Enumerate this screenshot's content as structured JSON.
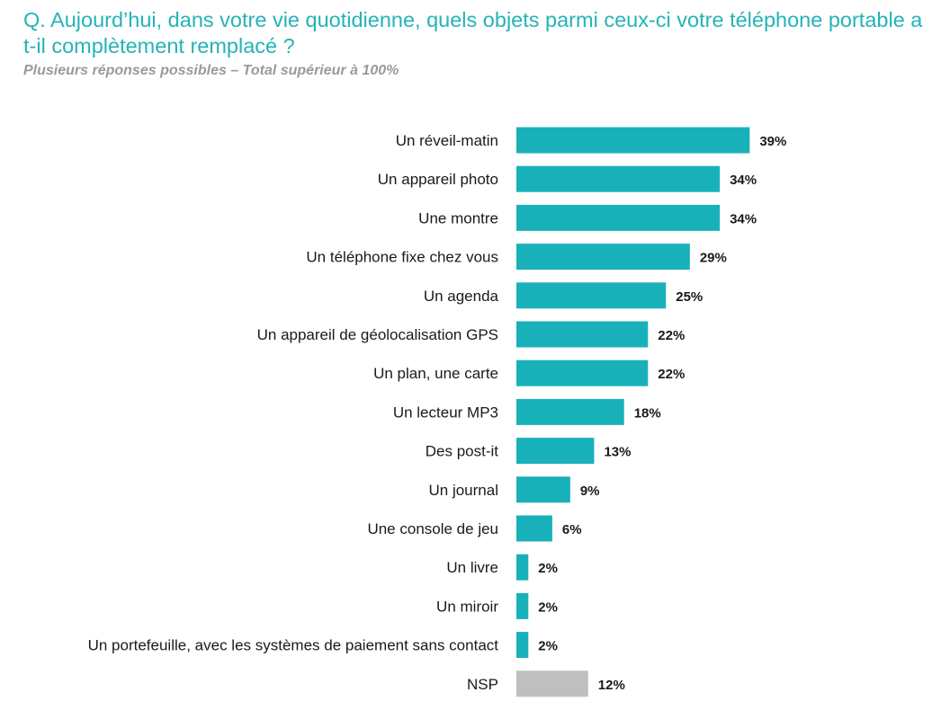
{
  "header": {
    "title": "Q. Aujourd’hui, dans votre vie quotidienne, quels objets parmi ceux-ci votre téléphone portable a t-il complètement remplacé ?",
    "subtitle": "Plusieurs réponses possibles – Total supérieur à 100%"
  },
  "colors": {
    "bar": "#19b1b9",
    "bar_nsp": "#bfbfbf",
    "title": "#25b3b8"
  },
  "chart_data": {
    "type": "bar",
    "orientation": "horizontal",
    "title": "Q. Aujourd’hui, dans votre vie quotidienne, quels objets parmi ceux-ci votre téléphone portable a t-il complètement remplacé ?",
    "subtitle": "Plusieurs réponses possibles – Total supérieur à 100%",
    "categories": [
      "Un réveil-matin",
      "Un appareil photo",
      "Une montre",
      "Un téléphone fixe chez vous",
      "Un agenda",
      "Un appareil de géolocalisation GPS",
      "Un plan, une carte",
      "Un lecteur MP3",
      "Des post-it",
      "Un journal",
      "Une console de jeu",
      "Un livre",
      "Un miroir",
      "Un portefeuille, avec les systèmes de paiement sans contact",
      "NSP"
    ],
    "values": [
      39,
      34,
      34,
      29,
      25,
      22,
      22,
      18,
      13,
      9,
      6,
      2,
      2,
      2,
      12
    ],
    "value_labels": [
      "39%",
      "34%",
      "34%",
      "29%",
      "25%",
      "22%",
      "22%",
      "18%",
      "13%",
      "9%",
      "6%",
      "2%",
      "2%",
      "2%",
      "12%"
    ],
    "unit": "%",
    "highlight_gray": [
      "NSP"
    ],
    "grid": false,
    "legend": "none"
  }
}
